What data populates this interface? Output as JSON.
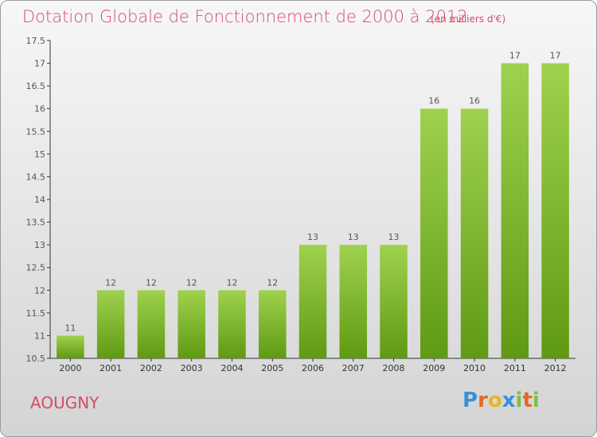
{
  "header": {
    "title": "Dotation Globale de Fonctionnement de 2000 à 2012",
    "unit": "(en milliers d'€)"
  },
  "footer": {
    "place": "AOUGNY",
    "brand": "Proxiti",
    "brand_letters": [
      {
        "ch": "P",
        "color": "#3a8fd8"
      },
      {
        "ch": "r",
        "color": "#e06a2a"
      },
      {
        "ch": "o",
        "color": "#e6b623"
      },
      {
        "ch": "x",
        "color": "#3a8fd8"
      },
      {
        "ch": "i",
        "color": "#7cc142"
      },
      {
        "ch": "t",
        "color": "#e06a2a"
      },
      {
        "ch": "i",
        "color": "#7cc142"
      }
    ]
  },
  "chart_data": {
    "type": "bar",
    "categories": [
      "2000",
      "2001",
      "2002",
      "2003",
      "2004",
      "2005",
      "2006",
      "2007",
      "2008",
      "2009",
      "2010",
      "2011",
      "2012"
    ],
    "values": [
      11,
      12,
      12,
      12,
      12,
      12,
      13,
      13,
      13,
      16,
      16,
      17,
      17
    ],
    "data_labels": [
      "11",
      "12",
      "12",
      "12",
      "12",
      "12",
      "13",
      "13",
      "13",
      "16",
      "16",
      "17",
      "17"
    ],
    "yticks": [
      "10.5",
      "11",
      "11.5",
      "12",
      "12.5",
      "13",
      "13.5",
      "14",
      "14.5",
      "15",
      "15.5",
      "16",
      "16.5",
      "17",
      "17.5"
    ],
    "ylim": [
      10.5,
      17.5
    ],
    "grid": false,
    "colors": {
      "bar_top": "#9fd24e",
      "bar_bottom": "#5f9a12",
      "text": "#555555"
    }
  }
}
